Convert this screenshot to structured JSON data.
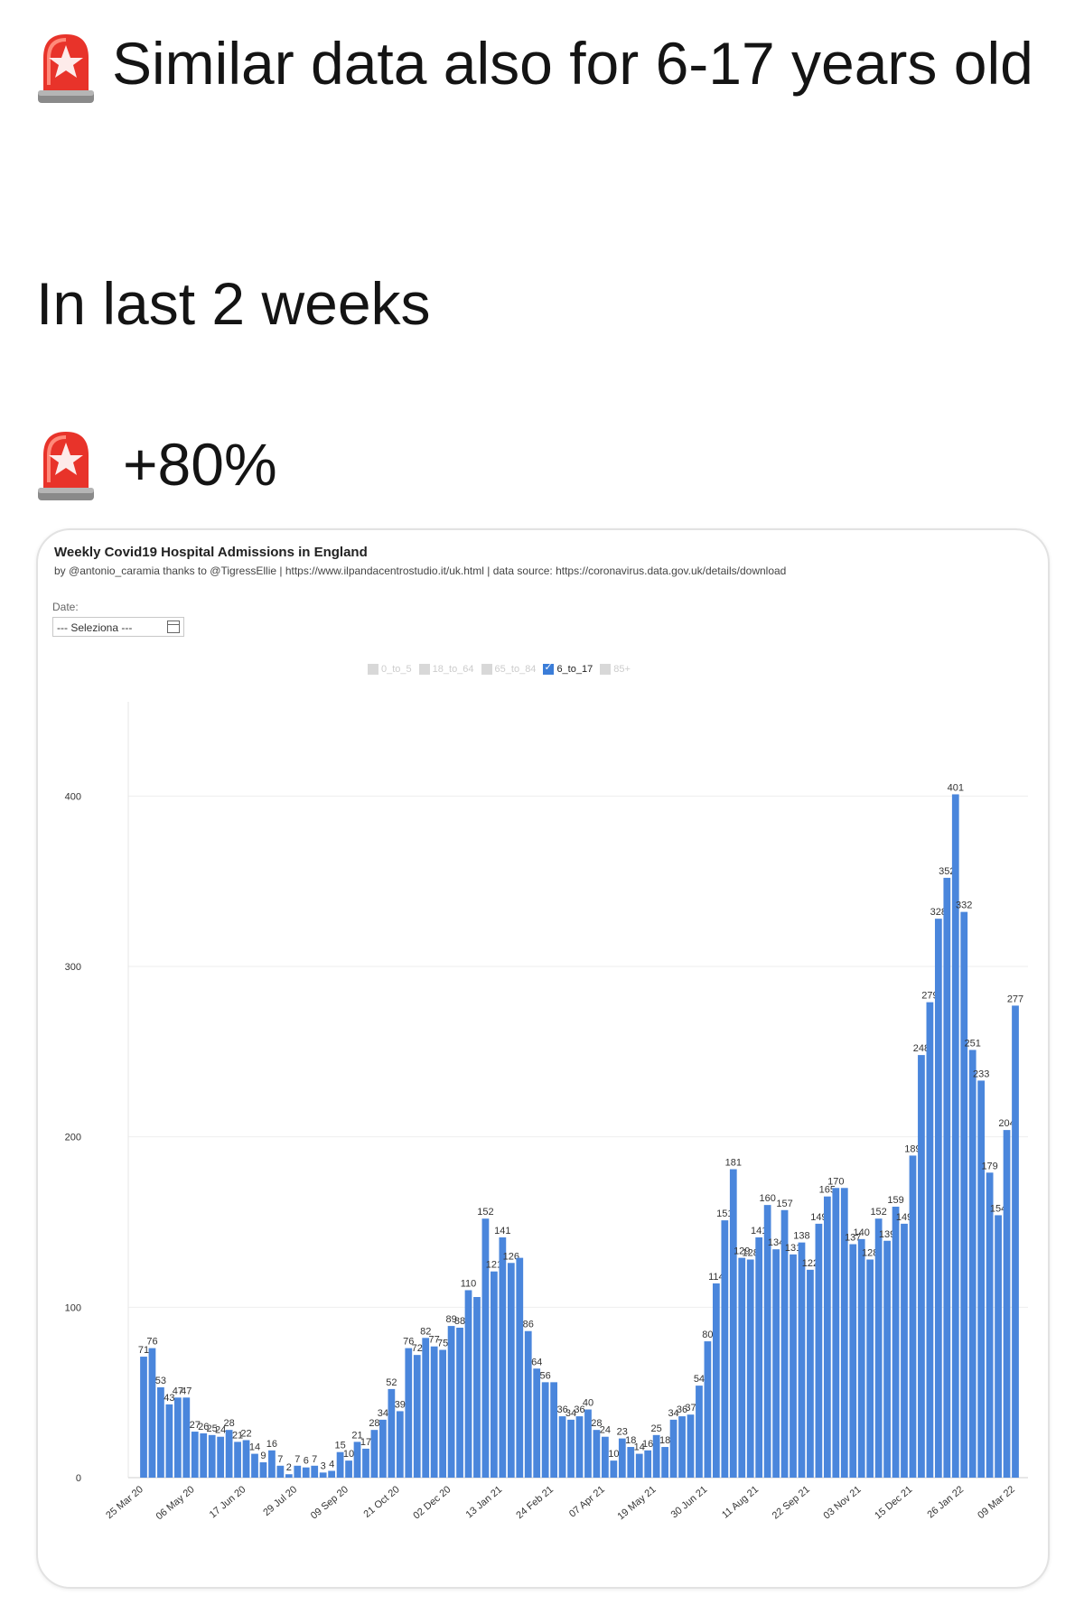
{
  "tweet": {
    "line1": "Similar data also for 6-17 years old",
    "line2": "In last 2 weeks",
    "line3": "+80%",
    "icon": "rotating-light-siren-icon"
  },
  "chart_header": {
    "title": "Weekly Covid19 Hospital Admissions in England",
    "subtitle": "by @antonio_caramia thanks to @TigressEllie | https://www.ilpandacentrostudio.it/uk.html | data source: https://coronavirus.data.gov.uk/details/download",
    "date_label": "Date:",
    "date_select": "--- Seleziona ---"
  },
  "legend": [
    {
      "label": "0_to_5",
      "active": false
    },
    {
      "label": "18_to_64",
      "active": false
    },
    {
      "label": "65_to_84",
      "active": false
    },
    {
      "label": "6_to_17",
      "active": true
    },
    {
      "label": "85+",
      "active": false
    }
  ],
  "colors": {
    "bar": "#4a86dc",
    "grid": "#eeeeee",
    "axis_text": "#333333"
  },
  "chart_data": {
    "type": "bar",
    "title": "Weekly Covid19 Hospital Admissions in England",
    "ylim": [
      0,
      450
    ],
    "yticks": [
      0,
      100,
      200,
      300,
      400
    ],
    "grid": true,
    "xtick_labels": [
      "25 Mar 20",
      "06 May 20",
      "17 Jun 20",
      "29 Jul 20",
      "09 Sep 20",
      "21 Oct 20",
      "02 Dec 20",
      "13 Jan 21",
      "24 Feb 21",
      "07 Apr 21",
      "19 May 21",
      "30 Jun 21",
      "11 Aug 21",
      "22 Sep 21",
      "03 Nov 21",
      "15 Dec 21",
      "26 Jan 22",
      "09 Mar 22"
    ],
    "xtick_every": 6,
    "series": [
      {
        "values": [
          71,
          76,
          53,
          43,
          47,
          47,
          27,
          26,
          25,
          24,
          28,
          21,
          22,
          14,
          9,
          16,
          7,
          2,
          7,
          6,
          7,
          3,
          4,
          15,
          10,
          21,
          17,
          28,
          34,
          52,
          39,
          76,
          72,
          82,
          77,
          75,
          89,
          88,
          110,
          106,
          152,
          121,
          141,
          126,
          129,
          86,
          64,
          56,
          56,
          36,
          34,
          36,
          40,
          28,
          24,
          10,
          23,
          18,
          14,
          16,
          25,
          18,
          34,
          36,
          37,
          54,
          80,
          114,
          151,
          181,
          129,
          128,
          141,
          160,
          134,
          157,
          131,
          138,
          122,
          149,
          165,
          170,
          170,
          137,
          140,
          128,
          152,
          139,
          159,
          149,
          189,
          248,
          279,
          328,
          352,
          401,
          332,
          251,
          233,
          179,
          154,
          204,
          277
        ],
        "labels": [
          71,
          76,
          53,
          43,
          47,
          47,
          27,
          26,
          25,
          24,
          28,
          21,
          22,
          14,
          9,
          16,
          7,
          2,
          7,
          6,
          7,
          3,
          4,
          15,
          10,
          21,
          17,
          28,
          34,
          52,
          39,
          76,
          72,
          82,
          77,
          75,
          89,
          88,
          110,
          null,
          152,
          121,
          141,
          126,
          null,
          86,
          64,
          56,
          null,
          36,
          34,
          36,
          40,
          28,
          24,
          10,
          23,
          18,
          14,
          16,
          25,
          18,
          34,
          36,
          37,
          54,
          80,
          114,
          151,
          181,
          129,
          128,
          141,
          160,
          134,
          157,
          131,
          138,
          122,
          149,
          165,
          170,
          null,
          137,
          140,
          128,
          152,
          139,
          159,
          149,
          189,
          248,
          279,
          328,
          352,
          401,
          332,
          251,
          233,
          179,
          154,
          204,
          277
        ]
      }
    ]
  }
}
